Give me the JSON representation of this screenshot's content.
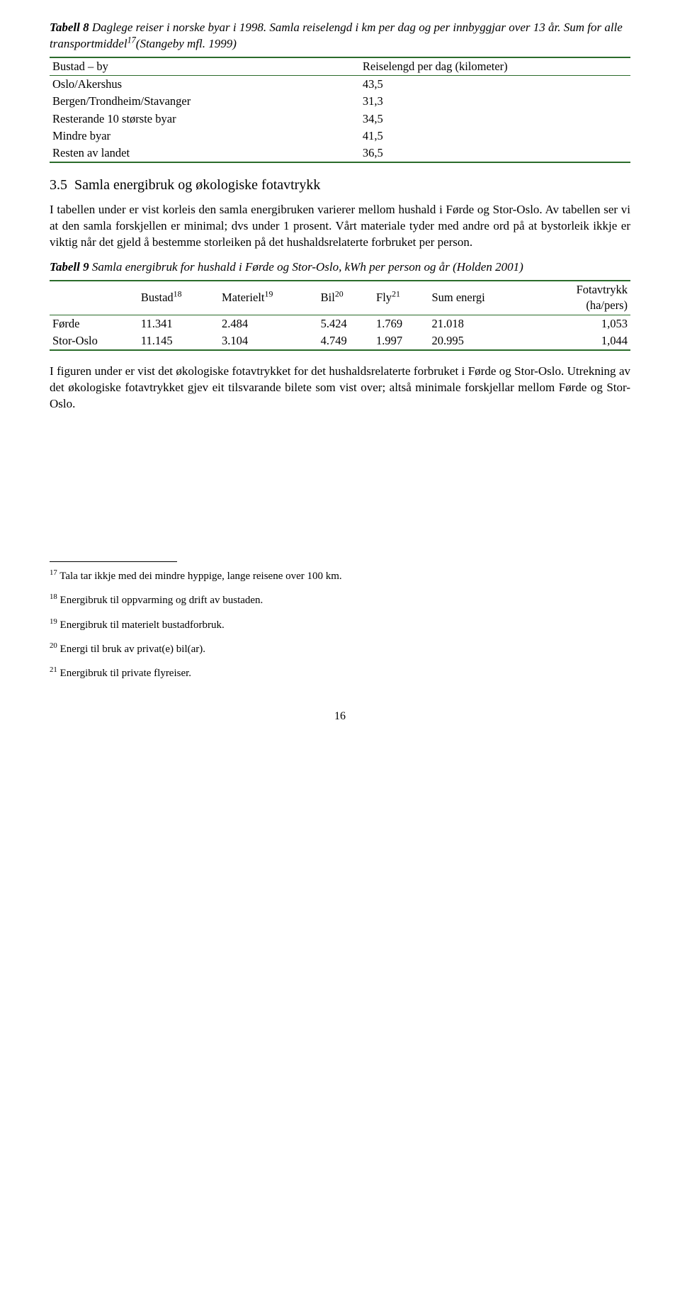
{
  "table8": {
    "title_bold": "Tabell 8",
    "title_rest": " Daglege reiser i norske byar i 1998. Samla reiselengd i km per dag og per innbyggjar over 13 år. Sum for alle transportmiddel",
    "title_sup": "17",
    "title_tail": "(Stangeby mfl. 1999)",
    "border_color": "#2a6b2a",
    "col1_header": "Bustad – by",
    "col2_header": "Reiselengd per dag (kilometer)",
    "rows": [
      {
        "label": "Oslo/Akershus",
        "value": "43,5"
      },
      {
        "label": "Bergen/Trondheim/Stavanger",
        "value": "31,3"
      },
      {
        "label": "Resterande 10 største byar",
        "value": "34,5"
      },
      {
        "label": "Mindre byar",
        "value": "41,5"
      },
      {
        "label": "Resten av landet",
        "value": "36,5"
      }
    ]
  },
  "section": {
    "number": "3.5",
    "title": "Samla energibruk og økologiske fotavtrykk"
  },
  "para1": "I tabellen under er vist korleis den samla energibruken varierer mellom hushald i Førde og Stor-Oslo. Av tabellen ser vi at den samla forskjellen er minimal; dvs under 1 prosent. Vårt materiale tyder med andre ord på at bystorleik ikkje er viktig når det gjeld å bestemme storleiken på det hushaldsrelaterte forbruket per person.",
  "table9": {
    "title_bold": "Tabell 9",
    "title_rest": " Samla energibruk for hushald i Førde og Stor-Oslo, kWh per person og år (Holden 2001)",
    "border_color": "#2a6b2a",
    "headers": {
      "c0": "",
      "c1": "Bustad",
      "s1": "18",
      "c2": "Materielt",
      "s2": "19",
      "c3": "Bil",
      "s3": "20",
      "c4": "Fly",
      "s4": "21",
      "c5": "Sum energi",
      "c6": "Fotavtrykk",
      "c6_sub": "(ha/pers)"
    },
    "rows": [
      {
        "label": "Førde",
        "v": [
          "11.341",
          "2.484",
          "5.424",
          "1.769",
          "21.018",
          "1,053"
        ]
      },
      {
        "label": "Stor-Oslo",
        "v": [
          "11.145",
          "3.104",
          "4.749",
          "1.997",
          "20.995",
          "1,044"
        ]
      }
    ]
  },
  "para2": "I figuren under er vist det økologiske fotavtrykket for det hushaldsrelaterte forbruket i Førde og Stor-Oslo. Utrekning av det økologiske fotavtrykket gjev eit tilsvarande bilete som vist over; altså minimale forskjellar mellom Førde og Stor-Oslo.",
  "footnotes": {
    "f17": {
      "n": "17",
      "t": " Tala tar ikkje med dei mindre hyppige, lange reisene over 100 km."
    },
    "f18": {
      "n": "18",
      "t": " Energibruk til oppvarming og drift av bustaden."
    },
    "f19": {
      "n": "19",
      "t": " Energibruk til materielt bustadforbruk."
    },
    "f20": {
      "n": "20",
      "t": " Energi til bruk av privat(e) bil(ar)."
    },
    "f21": {
      "n": "21",
      "t": " Energibruk til private flyreiser."
    }
  },
  "pagenum": "16"
}
